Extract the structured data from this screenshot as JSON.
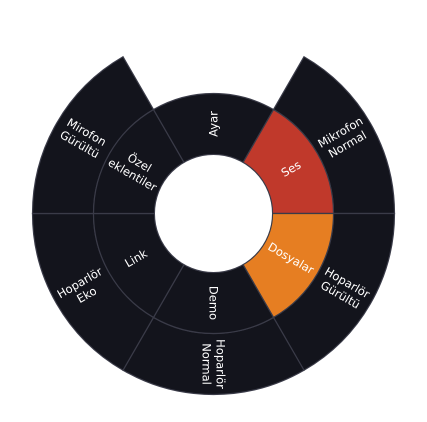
{
  "wheel": {
    "colors": {
      "segment_fill": "#13141c",
      "segment_stroke": "#3a3b48",
      "center_fill": "#ffffff",
      "label_color": "#ffffff",
      "highlight_red": "#c0392b",
      "highlight_orange": "#e67e22"
    },
    "inner_ring": [
      {
        "label": "Ses",
        "highlight": "red"
      },
      {
        "label": "Dosyalar",
        "highlight": "orange"
      },
      {
        "label": "Demo"
      },
      {
        "label": "Link"
      },
      {
        "label": "Özel eklentiler"
      },
      {
        "label": "Ayar"
      }
    ],
    "outer_ring": [
      {
        "label": "Mikrofon Normal"
      },
      {
        "label": "Hoparlör Gürültü"
      },
      {
        "label": "Hoparlör Normal"
      },
      {
        "label": "Hoparlör Eko"
      },
      {
        "label": "Mirofon Gürültü"
      }
    ]
  }
}
